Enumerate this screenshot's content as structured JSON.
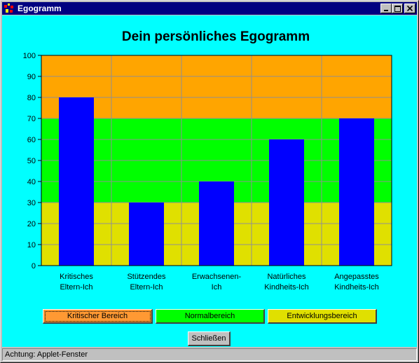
{
  "window": {
    "title": "Egogramm",
    "minimize_icon": "minimize-icon",
    "maximize_icon": "maximize-icon",
    "close_icon": "close-icon"
  },
  "chart_data": {
    "type": "bar",
    "title": "Dein persönliches Egogramm",
    "categories": [
      [
        "Kritisches",
        "Eltern-Ich"
      ],
      [
        "Stützendes",
        "Eltern-Ich"
      ],
      [
        "Erwachsenen-",
        "Ich"
      ],
      [
        "Natürliches",
        "Kindheits-Ich"
      ],
      [
        "Angepasstes",
        "Kindheits-Ich"
      ]
    ],
    "values": [
      80,
      30,
      40,
      60,
      70
    ],
    "ylim": [
      0,
      100
    ],
    "yticks": [
      0,
      10,
      20,
      30,
      40,
      50,
      60,
      70,
      80,
      90,
      100
    ],
    "grid": true,
    "bar_color": "#0000ff",
    "bands": [
      {
        "name": "Entwicklungsbereich",
        "from": 0,
        "to": 30,
        "color": "#e0e000"
      },
      {
        "name": "Normalbereich",
        "from": 30,
        "to": 70,
        "color": "#00ff00"
      },
      {
        "name": "Kritischer Bereich",
        "from": 70,
        "to": 100,
        "color": "#ffa500"
      }
    ]
  },
  "legend": {
    "critical": {
      "label": "Kritischer Bereich",
      "color": "#ff9933"
    },
    "normal": {
      "label": "Normalbereich",
      "color": "#00ff00"
    },
    "development": {
      "label": "Entwicklungsbereich",
      "color": "#e0e000"
    }
  },
  "close_button": {
    "label": "Schließen"
  },
  "status": {
    "text": "Achtung: Applet-Fenster"
  }
}
